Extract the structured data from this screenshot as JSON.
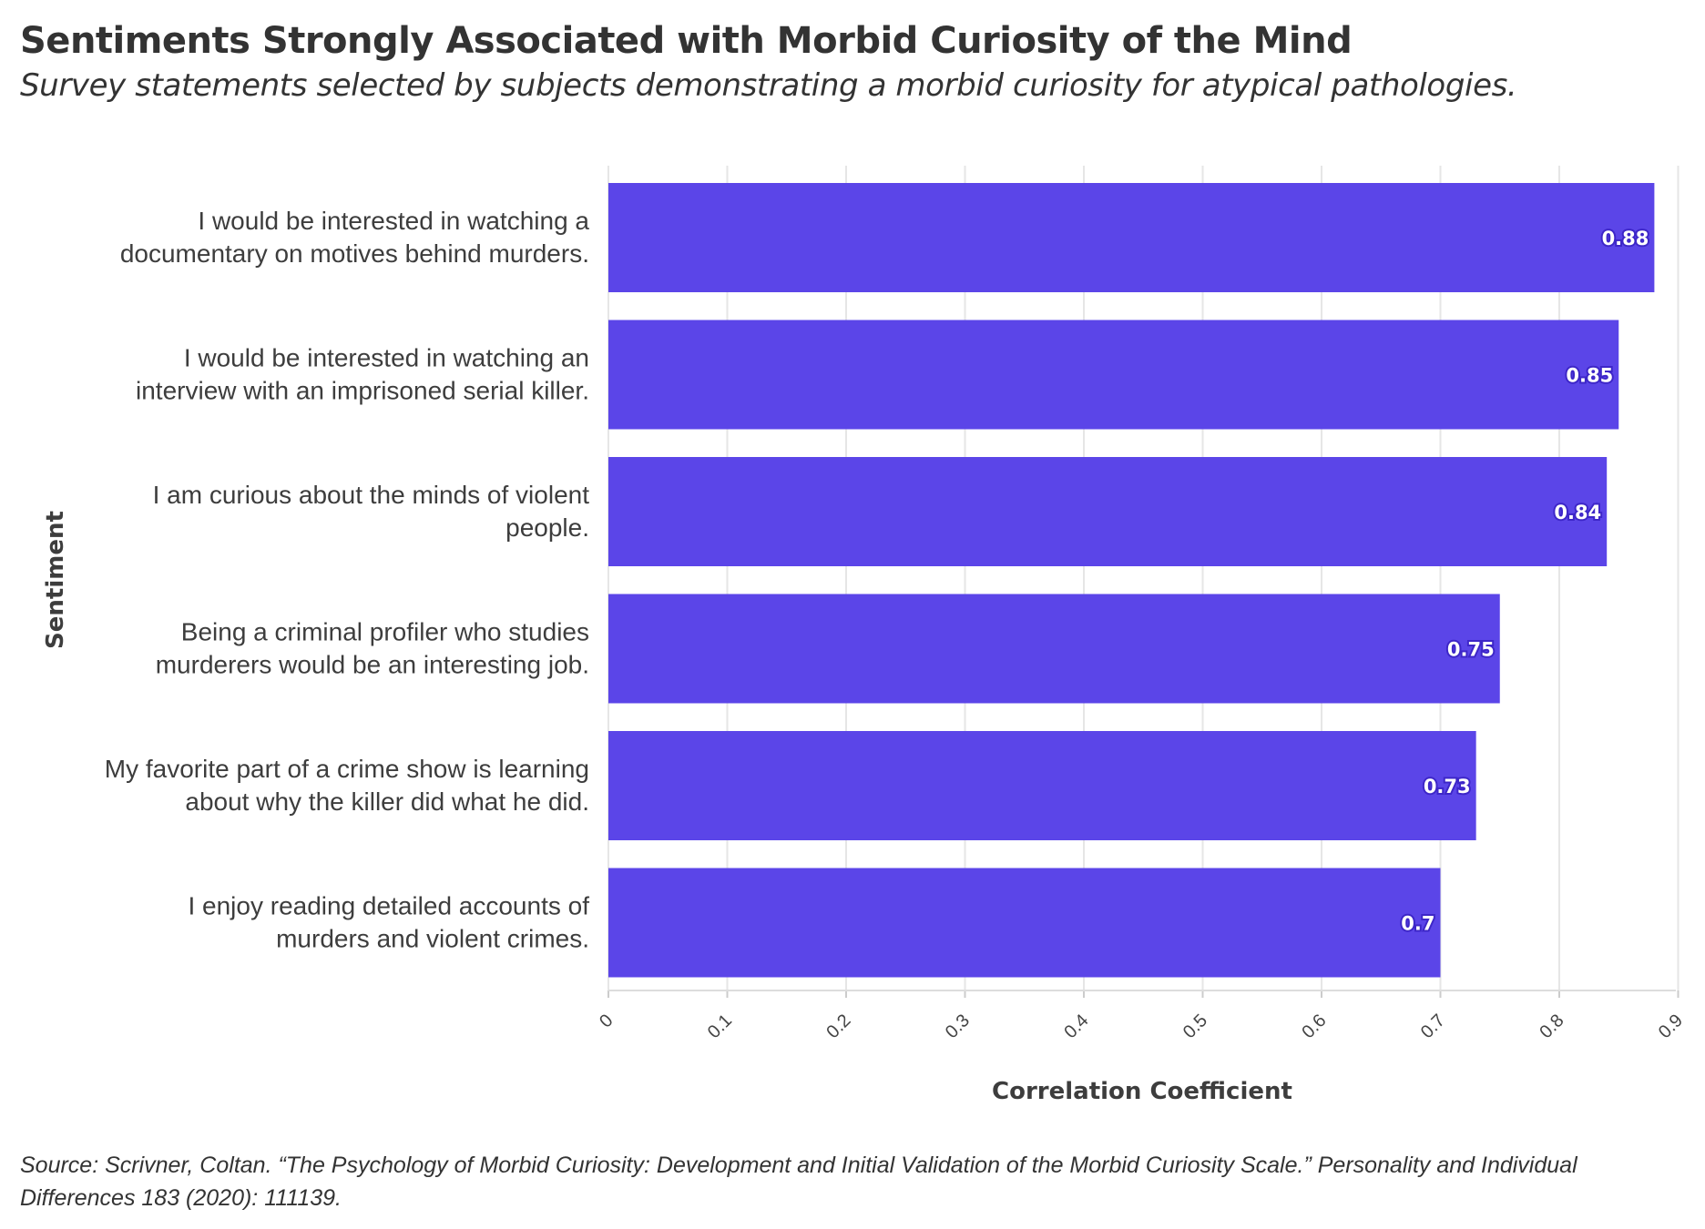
{
  "chart_data": {
    "type": "bar",
    "orientation": "horizontal",
    "title": "Sentiments Strongly Associated with Morbid Curiosity of the Mind",
    "subtitle": "Survey statements selected by subjects demonstrating a morbid curiosity for atypical pathologies.",
    "xlabel": "Correlation Coefficient",
    "ylabel": "Sentiment",
    "xlim": [
      0,
      0.9
    ],
    "xticks": [
      "0",
      "0.1",
      "0.2",
      "0.3",
      "0.4",
      "0.5",
      "0.6",
      "0.7",
      "0.8",
      "0.9"
    ],
    "grid": true,
    "bar_color": "#5b45e8",
    "categories": [
      [
        "I would be interested in watching a",
        "documentary on motives behind murders."
      ],
      [
        "I would be interested in watching an",
        "interview with an imprisoned serial killer."
      ],
      [
        "I am curious about the minds of violent",
        "people."
      ],
      [
        "Being a criminal profiler who studies",
        "murderers would be an interesting job."
      ],
      [
        "My favorite part of a crime show is learning",
        "about why the killer did what he did."
      ],
      [
        "I enjoy reading detailed accounts of",
        "murders and violent crimes."
      ]
    ],
    "values": [
      0.88,
      0.85,
      0.84,
      0.75,
      0.73,
      0.7
    ],
    "value_labels": [
      "0.88",
      "0.85",
      "0.84",
      "0.75",
      "0.73",
      "0.7"
    ],
    "source": "Source: Scrivner, Coltan. “The Psychology of Morbid Curiosity: Development and Initial Validation of the Morbid Curiosity Scale.” Personality and Individual Differences 183 (2020): 111139."
  }
}
